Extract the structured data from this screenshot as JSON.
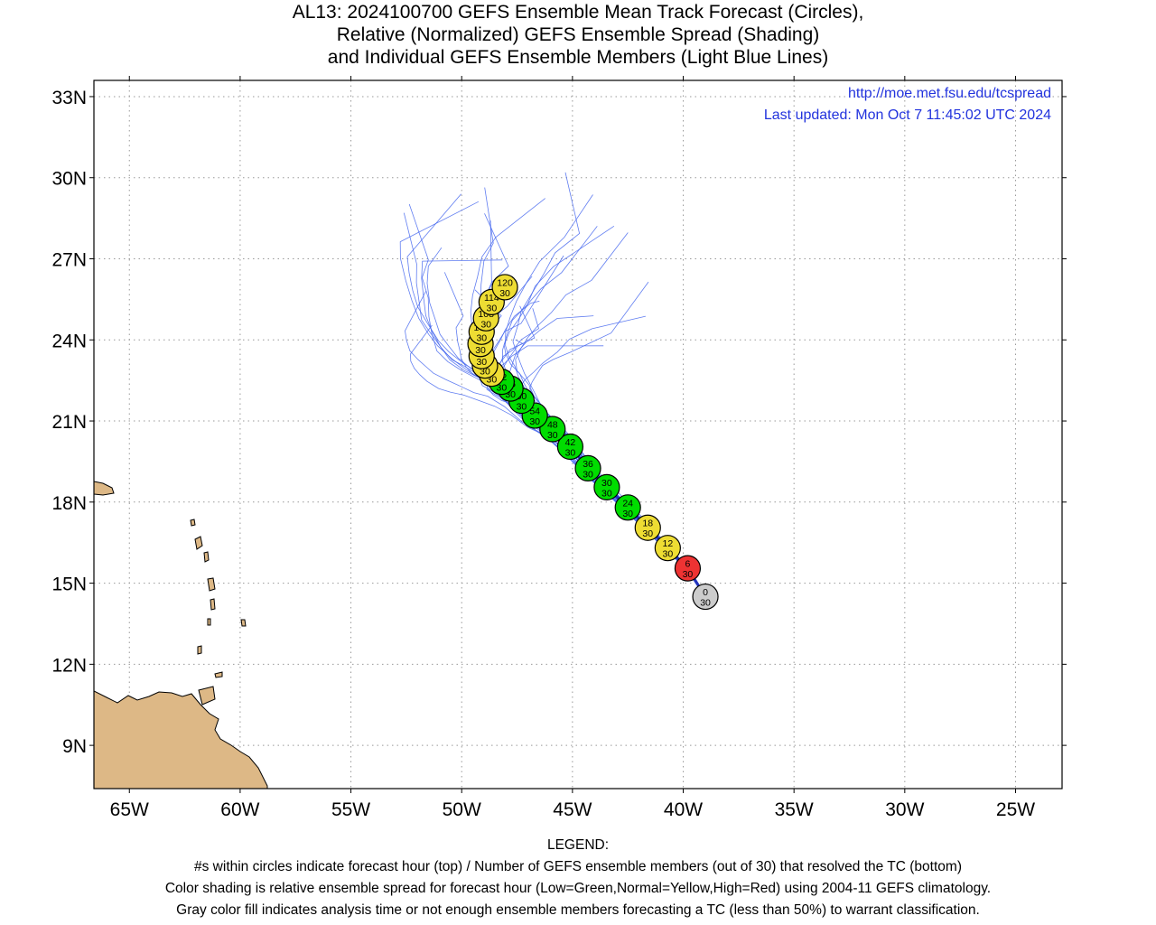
{
  "title": {
    "line1": "AL13: 2024100700 GEFS Ensemble Mean Track Forecast (Circles),",
    "line2": "Relative (Normalized) GEFS Ensemble Spread (Shading)",
    "line3": "and Individual GEFS Ensemble Members (Light Blue Lines)"
  },
  "credits": {
    "url": "http://moe.met.fsu.edu/tcspread",
    "updated": "Last updated: Mon Oct 7 11:45:02 UTC 2024"
  },
  "axes": {
    "lon_range": [
      -66.6,
      -22.9
    ],
    "lat_range": [
      7.4,
      33.6
    ],
    "lon_ticks": [
      {
        "value": -65,
        "label": "65W"
      },
      {
        "value": -60,
        "label": "60W"
      },
      {
        "value": -55,
        "label": "55W"
      },
      {
        "value": -50,
        "label": "50W"
      },
      {
        "value": -45,
        "label": "45W"
      },
      {
        "value": -40,
        "label": "40W"
      },
      {
        "value": -35,
        "label": "35W"
      },
      {
        "value": -30,
        "label": "30W"
      },
      {
        "value": -25,
        "label": "25W"
      }
    ],
    "lat_ticks": [
      {
        "value": 33,
        "label": "33N"
      },
      {
        "value": 30,
        "label": "30N"
      },
      {
        "value": 27,
        "label": "27N"
      },
      {
        "value": 24,
        "label": "24N"
      },
      {
        "value": 21,
        "label": "21N"
      },
      {
        "value": 18,
        "label": "18N"
      },
      {
        "value": 15,
        "label": "15N"
      },
      {
        "value": 12,
        "label": "12N"
      },
      {
        "value": 9,
        "label": "9N"
      }
    ],
    "grid": true
  },
  "colors": {
    "land": "#ddb886",
    "member_line": "#4466ee",
    "mean_track": "#2233bb",
    "credit_text": "#2233dd",
    "low_spread": "#00dd00",
    "normal_spread": "#eedd33",
    "high_spread": "#ee3333",
    "analysis": "#cccccc"
  },
  "mean_track": [
    {
      "hour": "0",
      "members": "30",
      "lon": -39.0,
      "lat": 14.5,
      "spread": "analysis"
    },
    {
      "hour": "6",
      "members": "30",
      "lon": -39.8,
      "lat": 15.55,
      "spread": "high"
    },
    {
      "hour": "12",
      "members": "30",
      "lon": -40.7,
      "lat": 16.3,
      "spread": "normal"
    },
    {
      "hour": "18",
      "members": "30",
      "lon": -41.6,
      "lat": 17.05,
      "spread": "normal"
    },
    {
      "hour": "24",
      "members": "30",
      "lon": -42.5,
      "lat": 17.8,
      "spread": "low"
    },
    {
      "hour": "30",
      "members": "30",
      "lon": -43.45,
      "lat": 18.55,
      "spread": "low"
    },
    {
      "hour": "36",
      "members": "30",
      "lon": -44.3,
      "lat": 19.25,
      "spread": "low"
    },
    {
      "hour": "42",
      "members": "30",
      "lon": -45.1,
      "lat": 20.05,
      "spread": "low"
    },
    {
      "hour": "48",
      "members": "30",
      "lon": -45.9,
      "lat": 20.7,
      "spread": "low"
    },
    {
      "hour": "54",
      "members": "30",
      "lon": -46.7,
      "lat": 21.2,
      "spread": "low"
    },
    {
      "hour": "60",
      "members": "30",
      "lon": -47.3,
      "lat": 21.75,
      "spread": "low"
    },
    {
      "hour": "66",
      "members": "30",
      "lon": -47.8,
      "lat": 22.2,
      "spread": "low"
    },
    {
      "hour": "72",
      "members": "30",
      "lon": -48.2,
      "lat": 22.45,
      "spread": "low"
    },
    {
      "hour": "78",
      "members": "30",
      "lon": -48.65,
      "lat": 22.75,
      "spread": "normal"
    },
    {
      "hour": "84",
      "members": "30",
      "lon": -48.95,
      "lat": 23.05,
      "spread": "normal"
    },
    {
      "hour": "90",
      "members": "30",
      "lon": -49.1,
      "lat": 23.4,
      "spread": "normal"
    },
    {
      "hour": "96",
      "members": "30",
      "lon": -49.15,
      "lat": 23.85,
      "spread": "normal"
    },
    {
      "hour": "102",
      "members": "30",
      "lon": -49.1,
      "lat": 24.3,
      "spread": "normal"
    },
    {
      "hour": "108",
      "members": "30",
      "lon": -48.9,
      "lat": 24.8,
      "spread": "normal"
    },
    {
      "hour": "114",
      "members": "30",
      "lon": -48.65,
      "lat": 25.4,
      "spread": "normal"
    },
    {
      "hour": "120",
      "members": "30",
      "lon": -48.05,
      "lat": 25.95,
      "spread": "normal"
    }
  ],
  "legend": {
    "heading": "LEGEND:",
    "line1": "#s within circles indicate forecast hour (top) / Number of GEFS ensemble members (out of 30) that resolved the TC (bottom)",
    "line2": "Color shading is relative ensemble spread for forecast hour (Low=Green,Normal=Yellow,High=Red) using 2004-11 GEFS climatology.",
    "line3": "Gray color fill indicates analysis time or not enough ensemble members forecasting a TC (less than 50%) to warrant classification."
  }
}
